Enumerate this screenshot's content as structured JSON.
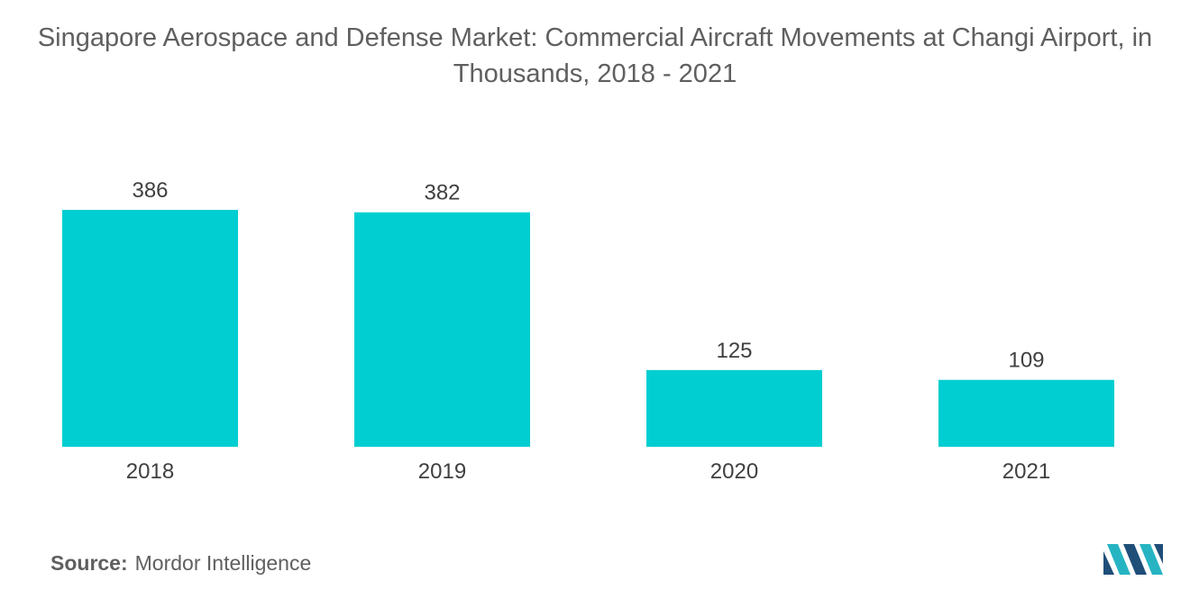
{
  "title": "Singapore Aerospace and Defense Market: Commercial Aircraft Movements at Changi Airport, in Thousands, 2018 - 2021",
  "source": {
    "label": "Source:",
    "text": "Mordor Intelligence"
  },
  "colors": {
    "bar": "#00ced1",
    "text": "#404040",
    "logo_dark": "#1f4e79",
    "logo_light": "#26b4c3"
  },
  "chart_data": {
    "type": "bar",
    "title": "Singapore Aerospace and Defense Market: Commercial Aircraft Movements at Changi Airport, in Thousands, 2018 - 2021",
    "categories": [
      "2018",
      "2019",
      "2020",
      "2021"
    ],
    "values": [
      386,
      382,
      125,
      109
    ],
    "xlabel": "",
    "ylabel": "",
    "ylim": [
      0,
      386
    ],
    "grid": false,
    "legend": "none"
  }
}
